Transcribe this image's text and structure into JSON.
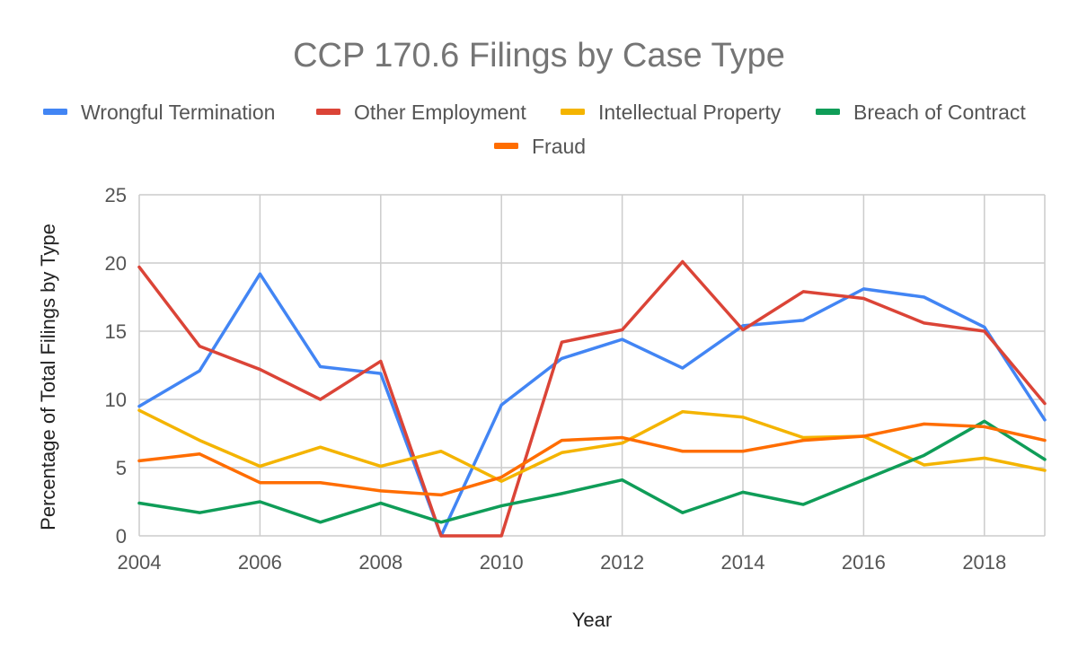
{
  "chart_data": {
    "type": "line",
    "title": "CCP 170.6 Filings by Case Type",
    "xlabel": "Year",
    "ylabel": "Percentage of Total Filings by Type",
    "x": [
      2004,
      2005,
      2006,
      2007,
      2008,
      2009,
      2010,
      2011,
      2012,
      2013,
      2014,
      2015,
      2016,
      2017,
      2018,
      2019
    ],
    "xlim": [
      2004,
      2019
    ],
    "ylim": [
      0,
      25
    ],
    "x_ticks": [
      "2004",
      "2006",
      "2008",
      "2010",
      "2012",
      "2014",
      "2016",
      "2018"
    ],
    "y_ticks": [
      "0",
      "5",
      "10",
      "15",
      "20",
      "25"
    ],
    "grid": true,
    "legend_position": "top",
    "series": [
      {
        "name": "Wrongful Termination",
        "color": "#4285f4",
        "values": [
          9.5,
          12.1,
          19.2,
          12.4,
          11.9,
          0,
          9.6,
          13.0,
          14.4,
          12.3,
          15.4,
          15.8,
          18.1,
          17.5,
          15.3,
          8.5
        ]
      },
      {
        "name": "Other Employment",
        "color": "#db4437",
        "values": [
          19.7,
          13.9,
          12.2,
          10.0,
          12.8,
          0,
          0,
          14.2,
          15.1,
          20.1,
          15.1,
          17.9,
          17.4,
          15.6,
          15.0,
          9.7
        ]
      },
      {
        "name": "Intellectual Property",
        "color": "#f4b400",
        "values": [
          9.2,
          7.0,
          5.1,
          6.5,
          5.1,
          6.2,
          4.0,
          6.1,
          6.8,
          9.1,
          8.7,
          7.2,
          7.3,
          5.2,
          5.7,
          4.8
        ]
      },
      {
        "name": "Breach of Contract",
        "color": "#0f9d58",
        "values": [
          2.4,
          1.7,
          2.5,
          1.0,
          2.4,
          1.0,
          2.2,
          3.1,
          4.1,
          1.7,
          3.2,
          2.3,
          4.1,
          5.9,
          8.4,
          5.6
        ]
      },
      {
        "name": "Fraud",
        "color": "#ff6d00",
        "values": [
          5.5,
          6.0,
          3.9,
          3.9,
          3.3,
          3.0,
          4.3,
          7.0,
          7.2,
          6.2,
          6.2,
          7.0,
          7.3,
          8.2,
          8.0,
          7.0
        ]
      }
    ]
  }
}
